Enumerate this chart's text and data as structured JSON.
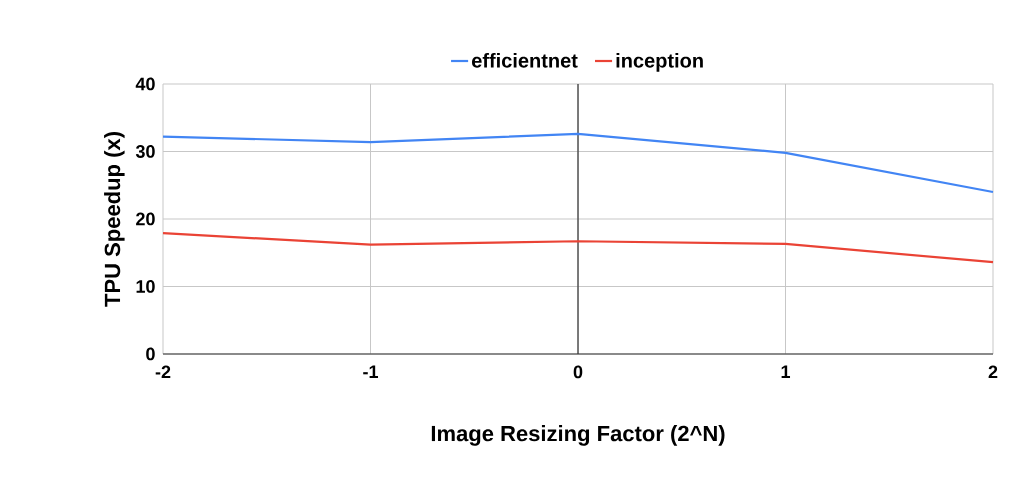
{
  "chart_data": {
    "type": "line",
    "xlabel": "Image Resizing Factor (2^N)",
    "ylabel": "TPU Speedup (x)",
    "x": [
      -2,
      -1,
      0,
      1,
      2
    ],
    "series": [
      {
        "name": "efficientnet",
        "color": "#4285f4",
        "values": [
          32.2,
          31.4,
          32.6,
          29.8,
          24.0
        ]
      },
      {
        "name": "inception",
        "color": "#ea4335",
        "values": [
          17.9,
          16.2,
          16.7,
          16.3,
          13.6
        ]
      }
    ],
    "xlim": [
      -2,
      2
    ],
    "ylim": [
      0,
      40
    ],
    "xticks": [
      -2,
      -1,
      0,
      1,
      2
    ],
    "yticks": [
      0,
      10,
      20,
      30,
      40
    ],
    "grid": true,
    "legend": "top",
    "marker": "none",
    "line_style": "solid",
    "ref_lines": [
      {
        "axis": "x",
        "value": 0,
        "color": "#333333"
      }
    ]
  }
}
